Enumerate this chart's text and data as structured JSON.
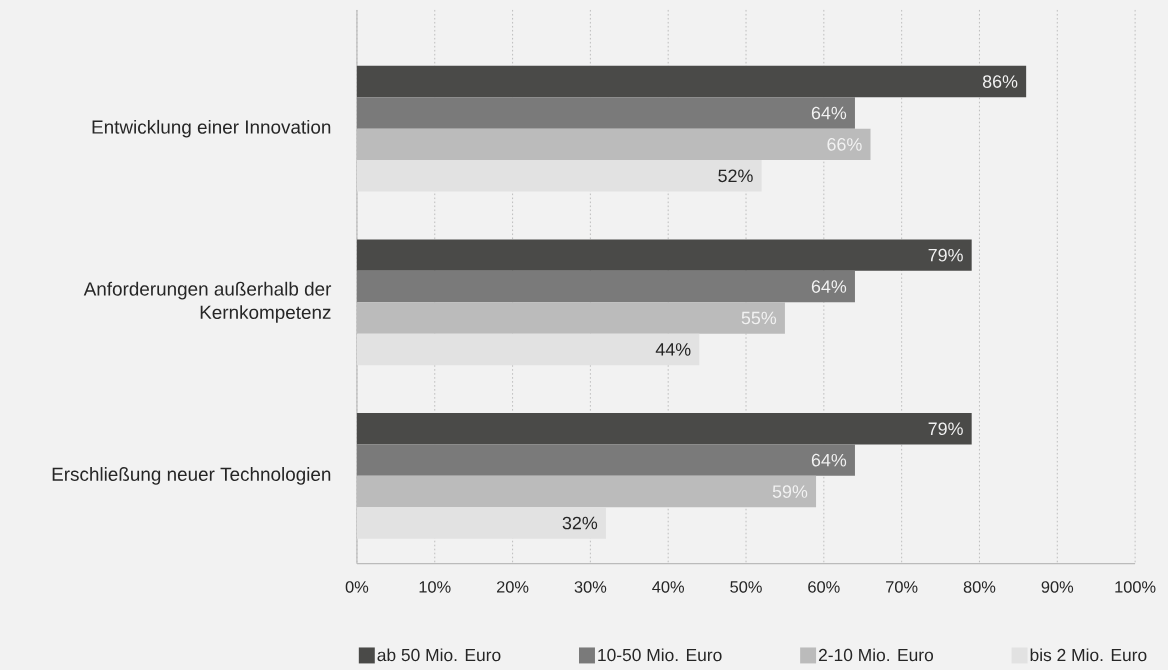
{
  "chart_data": {
    "type": "bar",
    "orientation": "horizontal",
    "categories": [
      "Entwicklung einer Innovation",
      "Anforderungen außerhalb der Kernkompetenz",
      "Erschließung neuer Technologien"
    ],
    "series": [
      {
        "name": "ab 50 Mio. Euro",
        "color": "#4a4a48",
        "values": [
          86,
          79,
          79
        ],
        "value_labels": [
          "86%",
          "79%",
          "79%"
        ]
      },
      {
        "name": "10-50 Mio. Euro",
        "color": "#7a7a7a",
        "values": [
          64,
          64,
          64
        ],
        "value_labels": [
          "64%",
          "64%",
          "64%"
        ]
      },
      {
        "name": "2-10 Mio. Euro",
        "color": "#bbbbbb",
        "values": [
          66,
          55,
          59
        ],
        "value_labels": [
          "66%",
          "55%",
          "59%"
        ]
      },
      {
        "name": "bis 2 Mio. Euro",
        "color": "#e2e2e2",
        "values": [
          52,
          44,
          32
        ],
        "value_labels": [
          "52%",
          "44%",
          "32%"
        ]
      }
    ],
    "xlim": [
      0,
      100
    ],
    "xticks": [
      {
        "value": 0,
        "label": "0%"
      },
      {
        "value": 10,
        "label": "10%"
      },
      {
        "value": 20,
        "label": "20%"
      },
      {
        "value": 30,
        "label": "30%"
      },
      {
        "value": 40,
        "label": "40%"
      },
      {
        "value": 50,
        "label": "50%"
      },
      {
        "value": 60,
        "label": "60%"
      },
      {
        "value": 70,
        "label": "70%"
      },
      {
        "value": 80,
        "label": "80%"
      },
      {
        "value": 90,
        "label": "90%"
      },
      {
        "value": 100,
        "label": "100%"
      }
    ],
    "grid": "x",
    "legend": "bottom"
  }
}
